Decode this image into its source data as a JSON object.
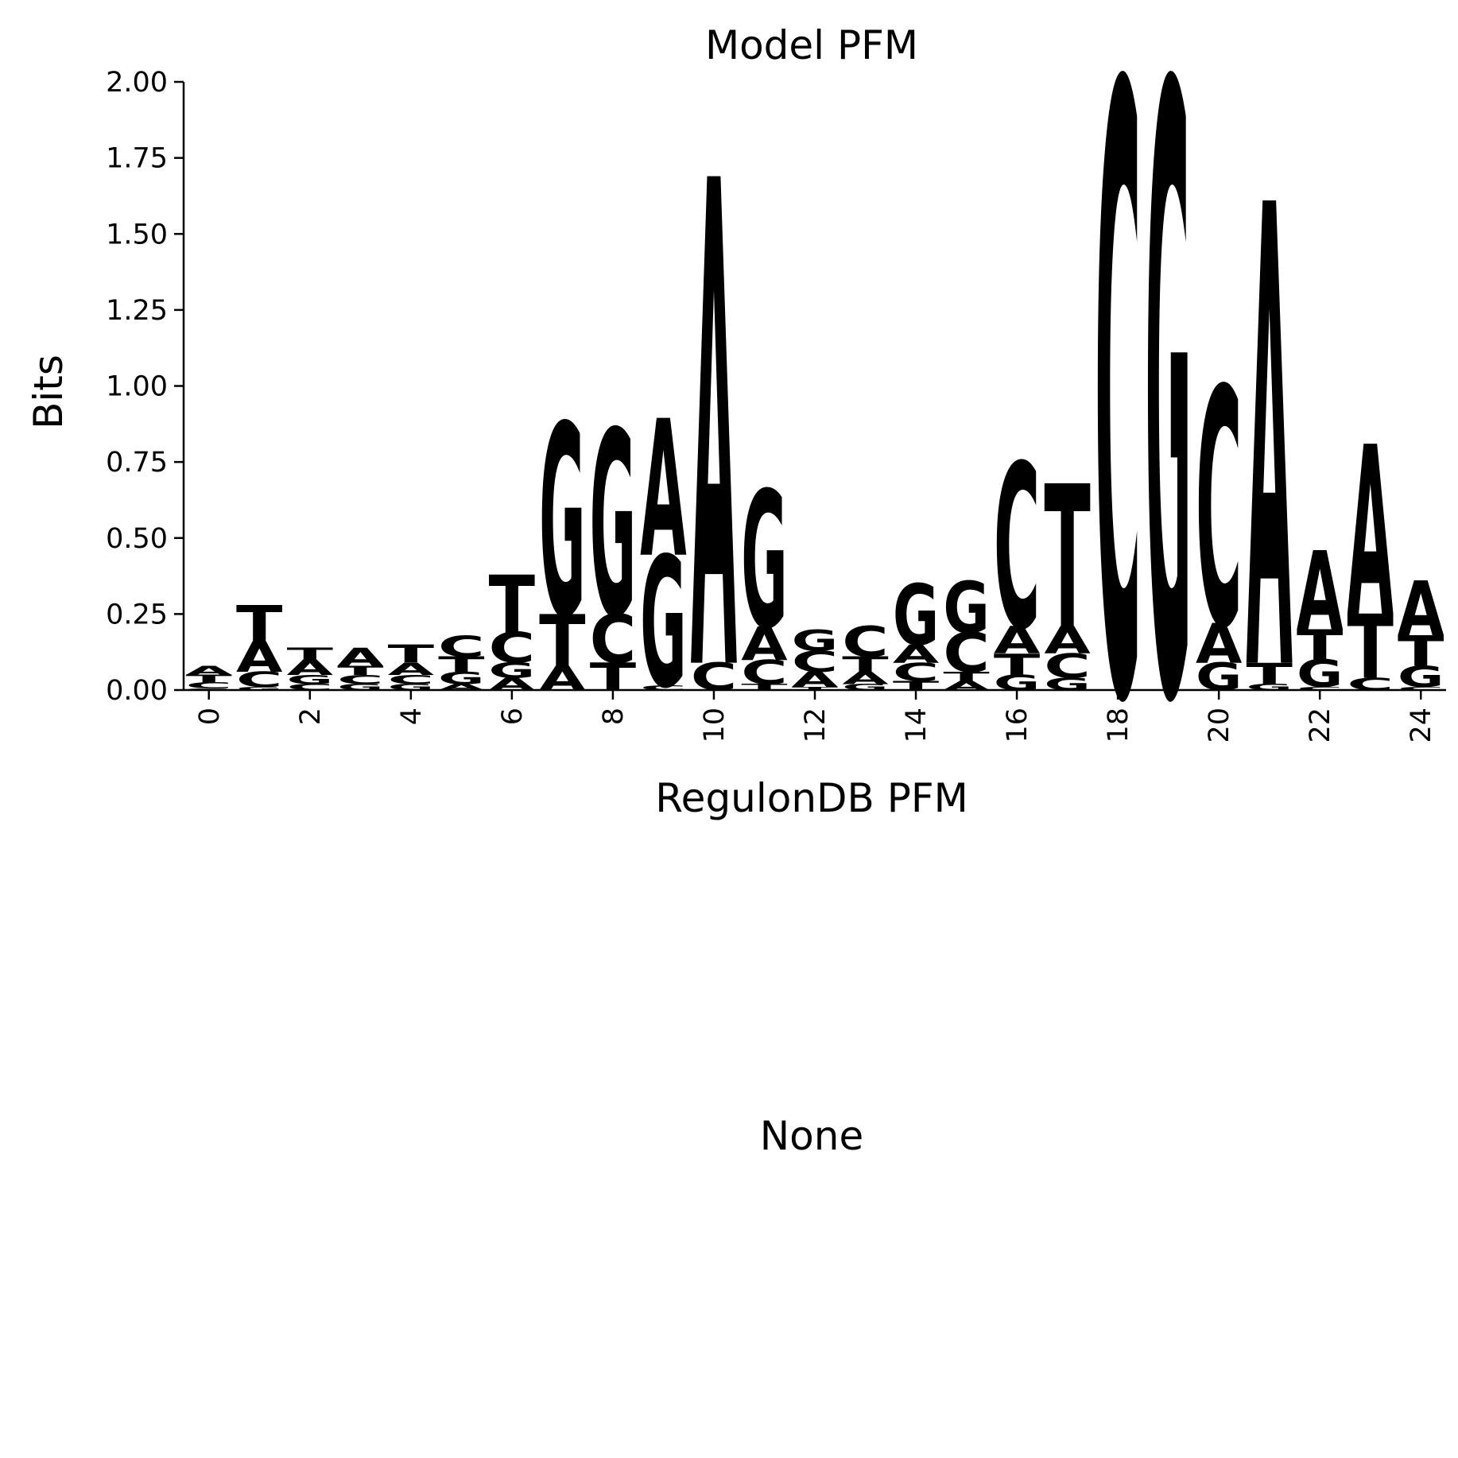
{
  "figure": {
    "top_panel_title": "Model PFM",
    "bottom_panel_title": "RegulonDB PFM",
    "bottom_panel_text": "None"
  },
  "chart_data": {
    "type": "sequence-logo",
    "title": "Model PFM",
    "xlabel": "RegulonDB PFM",
    "ylabel": "Bits",
    "xlim": [
      -0.5,
      24.5
    ],
    "ylim": [
      0,
      2.0
    ],
    "x_ticks": [
      0,
      2,
      4,
      6,
      8,
      10,
      12,
      14,
      16,
      18,
      20,
      22,
      24
    ],
    "y_ticks": [
      "0.00",
      "0.25",
      "0.50",
      "0.75",
      "1.00",
      "1.25",
      "1.50",
      "1.75",
      "2.00"
    ],
    "grid": false,
    "letter_colors": {
      "A": "#ff0000",
      "C": "#0000ff",
      "G": "#ffa500",
      "T": "#008000"
    },
    "positions": [
      {
        "pos": 0,
        "stack": [
          [
            "G",
            0.005
          ],
          [
            "C",
            0.02
          ],
          [
            "T",
            0.025
          ],
          [
            "A",
            0.03
          ]
        ]
      },
      {
        "pos": 1,
        "stack": [
          [
            "G",
            0.01
          ],
          [
            "C",
            0.05
          ],
          [
            "A",
            0.1
          ],
          [
            "T",
            0.12
          ]
        ]
      },
      {
        "pos": 2,
        "stack": [
          [
            "C",
            0.02
          ],
          [
            "G",
            0.03
          ],
          [
            "A",
            0.05
          ],
          [
            "T",
            0.04
          ]
        ]
      },
      {
        "pos": 3,
        "stack": [
          [
            "G",
            0.02
          ],
          [
            "C",
            0.03
          ],
          [
            "T",
            0.03
          ],
          [
            "A",
            0.06
          ]
        ]
      },
      {
        "pos": 4,
        "stack": [
          [
            "G",
            0.02
          ],
          [
            "C",
            0.03
          ],
          [
            "A",
            0.04
          ],
          [
            "T",
            0.06
          ]
        ]
      },
      {
        "pos": 5,
        "stack": [
          [
            "A",
            0.02
          ],
          [
            "G",
            0.04
          ],
          [
            "T",
            0.05
          ],
          [
            "C",
            0.07
          ]
        ]
      },
      {
        "pos": 6,
        "stack": [
          [
            "A",
            0.04
          ],
          [
            "G",
            0.05
          ],
          [
            "C",
            0.1
          ],
          [
            "T",
            0.19
          ]
        ]
      },
      {
        "pos": 7,
        "stack": [
          [
            "A",
            0.08
          ],
          [
            "T",
            0.17
          ],
          [
            "G",
            0.63
          ]
        ]
      },
      {
        "pos": 8,
        "stack": [
          [
            "T",
            0.09
          ],
          [
            "C",
            0.16
          ],
          [
            "G",
            0.61
          ]
        ]
      },
      {
        "pos": 9,
        "stack": [
          [
            "C",
            0.015
          ],
          [
            "G",
            0.43
          ],
          [
            "A",
            0.45
          ]
        ]
      },
      {
        "pos": 10,
        "stack": [
          [
            "C",
            0.09
          ],
          [
            "A",
            1.6
          ]
        ]
      },
      {
        "pos": 11,
        "stack": [
          [
            "T",
            0.02
          ],
          [
            "C",
            0.08
          ],
          [
            "A",
            0.11
          ],
          [
            "G",
            0.45
          ]
        ]
      },
      {
        "pos": 12,
        "stack": [
          [
            "T",
            0.01
          ],
          [
            "A",
            0.05
          ],
          [
            "C",
            0.07
          ],
          [
            "G",
            0.07
          ]
        ]
      },
      {
        "pos": 13,
        "stack": [
          [
            "G",
            0.02
          ],
          [
            "A",
            0.04
          ],
          [
            "T",
            0.05
          ],
          [
            "C",
            0.1
          ]
        ]
      },
      {
        "pos": 14,
        "stack": [
          [
            "T",
            0.03
          ],
          [
            "C",
            0.06
          ],
          [
            "A",
            0.06
          ],
          [
            "G",
            0.2
          ]
        ]
      },
      {
        "pos": 15,
        "stack": [
          [
            "A",
            0.03
          ],
          [
            "T",
            0.03
          ],
          [
            "C",
            0.13
          ],
          [
            "G",
            0.17
          ]
        ]
      },
      {
        "pos": 16,
        "stack": [
          [
            "G",
            0.05
          ],
          [
            "T",
            0.07
          ],
          [
            "A",
            0.09
          ],
          [
            "C",
            0.54
          ]
        ]
      },
      {
        "pos": 17,
        "stack": [
          [
            "G",
            0.04
          ],
          [
            "C",
            0.08
          ],
          [
            "A",
            0.09
          ],
          [
            "T",
            0.47
          ]
        ]
      },
      {
        "pos": 18,
        "stack": [
          [
            "C",
            2.0
          ]
        ]
      },
      {
        "pos": 19,
        "stack": [
          [
            "G",
            2.0
          ]
        ]
      },
      {
        "pos": 20,
        "stack": [
          [
            "G",
            0.09
          ],
          [
            "A",
            0.13
          ],
          [
            "C",
            0.78
          ]
        ]
      },
      {
        "pos": 21,
        "stack": [
          [
            "G",
            0.02
          ],
          [
            "T",
            0.07
          ],
          [
            "A",
            1.52
          ]
        ]
      },
      {
        "pos": 22,
        "stack": [
          [
            "C",
            0.01
          ],
          [
            "G",
            0.09
          ],
          [
            "T",
            0.1
          ],
          [
            "A",
            0.26
          ]
        ]
      },
      {
        "pos": 23,
        "stack": [
          [
            "C",
            0.04
          ],
          [
            "T",
            0.21
          ],
          [
            "A",
            0.56
          ]
        ]
      },
      {
        "pos": 24,
        "stack": [
          [
            "C",
            0.01
          ],
          [
            "G",
            0.07
          ],
          [
            "T",
            0.1
          ],
          [
            "A",
            0.18
          ]
        ]
      }
    ]
  }
}
